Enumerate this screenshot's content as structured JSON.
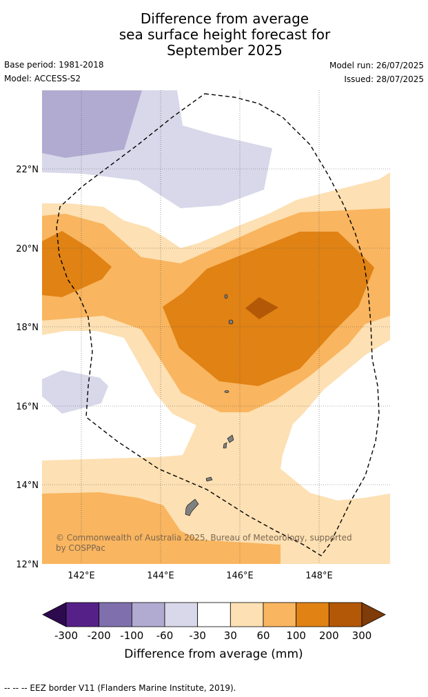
{
  "title_lines": [
    "Difference from average",
    "sea surface height forecast for",
    "September 2025"
  ],
  "meta": {
    "base_period": "Base period: 1981-2018",
    "model": "Model: ACCESS-S2",
    "model_run": "Model run: 26/07/2025",
    "issued": "Issued: 28/07/2025"
  },
  "map": {
    "lon_labels": [
      "142°E",
      "144°E",
      "146°E",
      "148°E"
    ],
    "lat_labels": [
      "22°N",
      "20°N",
      "18°N",
      "16°N",
      "14°N",
      "12°N"
    ],
    "extent": {
      "lon_min": 141,
      "lon_max": 149.8,
      "lat_min": 12,
      "lat_max": 24
    },
    "copyright": "© Commonwealth of Australia 2025, Bureau of Meteorology, supported by COSPPac"
  },
  "colorbar": {
    "label": "Difference from average (mm)",
    "ticks": [
      "-300",
      "-200",
      "-100",
      "-60",
      "-30",
      "30",
      "60",
      "100",
      "200",
      "300"
    ],
    "colors": [
      "#2d0a4e",
      "#552189",
      "#7f70ad",
      "#b1abd1",
      "#d8d8ea",
      "#ffffff",
      "#fde0b3",
      "#f9b55f",
      "#e08214",
      "#b35806",
      "#7f3b08"
    ]
  },
  "footer": "--  --  -- EEZ border V11 (Flanders Marine Institute, 2019)."
}
